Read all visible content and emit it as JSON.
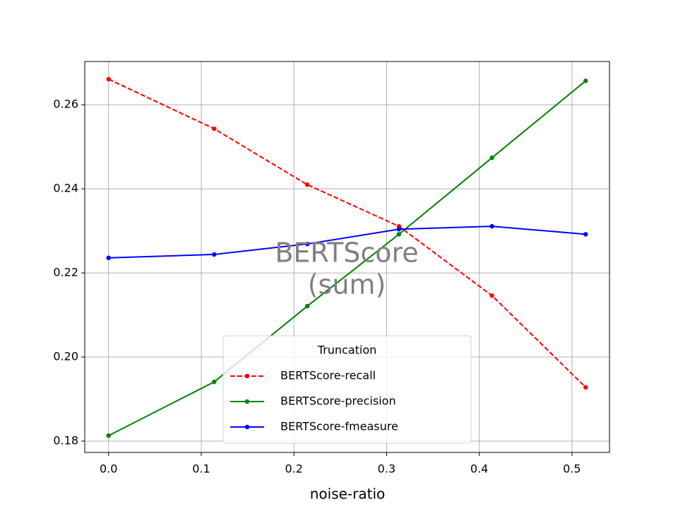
{
  "chart_data": {
    "type": "line",
    "xlabel": "noise-ratio",
    "x": [
      0,
      0.114,
      0.2144,
      0.3133,
      0.4137,
      0.5148
    ],
    "series": [
      {
        "name": "BERTScore-recall",
        "color": "#ff0000",
        "linestyle": "dashed",
        "values": [
          0.2661,
          0.2543,
          0.241,
          0.2311,
          0.2146,
          0.1928
        ]
      },
      {
        "name": "BERTScore-precision",
        "color": "#008000",
        "linestyle": "solid",
        "values": [
          0.1813,
          0.1941,
          0.2121,
          0.2292,
          0.2474,
          0.2657
        ]
      },
      {
        "name": "BERTScore-fmeasure",
        "color": "#0000ff",
        "linestyle": "solid",
        "values": [
          0.2236,
          0.2244,
          0.2269,
          0.2304,
          0.2311,
          0.2292
        ]
      }
    ],
    "annotation": [
      "BERTScore",
      "(sum)"
    ],
    "legend_title": "Truncation",
    "legend_position": "lower center",
    "xlim": [
      -0.0257,
      0.5405
    ],
    "ylim": [
      0.1773,
      0.2703
    ],
    "xticks": [
      {
        "value": 0,
        "label": "0.0"
      },
      0.1,
      0.2,
      0.3,
      0.4,
      0.5
    ],
    "yticks": [
      0.18,
      {
        "value": 0.2,
        "label": "0.20"
      },
      0.22,
      0.24,
      0.26
    ],
    "grid": true
  }
}
